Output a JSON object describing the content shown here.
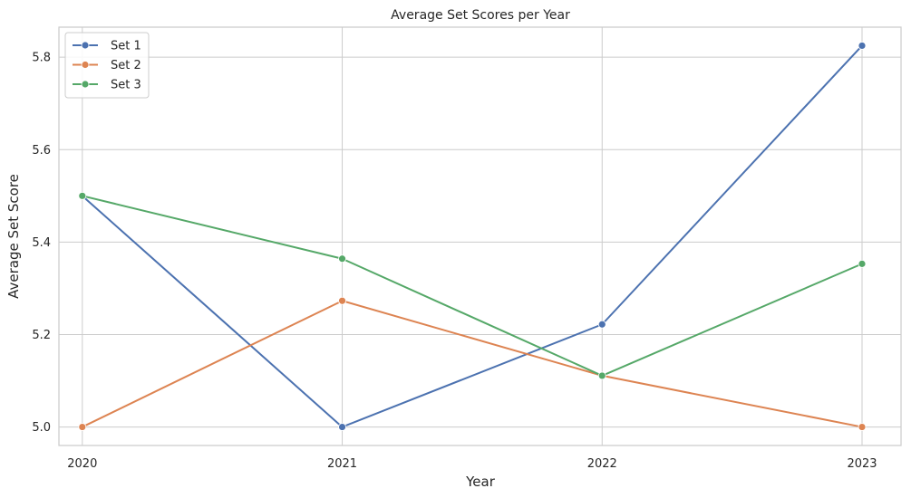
{
  "chart_data": {
    "type": "line",
    "title": "Average Set Scores per Year",
    "xlabel": "Year",
    "ylabel": "Average Set Score",
    "categories": [
      "2020",
      "2021",
      "2022",
      "2023"
    ],
    "x": [
      2020,
      2021,
      2022,
      2023
    ],
    "xlim": [
      2019.91,
      2023.15
    ],
    "ylim": [
      4.96,
      5.865
    ],
    "yticks": [
      5.0,
      5.2,
      5.4,
      5.6,
      5.8
    ],
    "ytick_labels": [
      "5.0",
      "5.2",
      "5.4",
      "5.6",
      "5.8"
    ],
    "grid": true,
    "legend_position": "top-left",
    "series": [
      {
        "name": "Set 1",
        "color": "#4c72b0",
        "values": [
          5.5,
          5.0,
          5.222,
          5.825
        ]
      },
      {
        "name": "Set 2",
        "color": "#dd8452",
        "values": [
          5.0,
          5.273,
          5.111,
          5.0
        ]
      },
      {
        "name": "Set 3",
        "color": "#55a868",
        "values": [
          5.5,
          5.364,
          5.111,
          5.353
        ]
      }
    ]
  }
}
